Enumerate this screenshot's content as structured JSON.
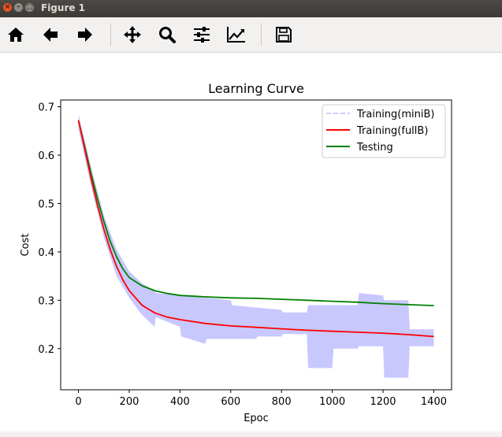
{
  "window": {
    "title": "Figure 1"
  },
  "toolbar": {
    "buttons": [
      {
        "name": "home-button",
        "icon": "home-icon"
      },
      {
        "name": "back-button",
        "icon": "arrow-left-icon"
      },
      {
        "name": "forward-button",
        "icon": "arrow-right-icon"
      },
      {
        "name": "pan-button",
        "icon": "move-icon"
      },
      {
        "name": "zoom-button",
        "icon": "search-icon"
      },
      {
        "name": "configure-subplots-button",
        "icon": "sliders-icon"
      },
      {
        "name": "edit-axis-button",
        "icon": "line-chart-icon"
      },
      {
        "name": "save-button",
        "icon": "floppy-disk-icon"
      }
    ]
  },
  "chart_data": {
    "type": "line",
    "title": "Learning Curve",
    "xlabel": "Epoc",
    "ylabel": "Cost",
    "xlim": [
      -70,
      1470
    ],
    "ylim": [
      0.115,
      0.714
    ],
    "xticks": [
      0,
      200,
      400,
      600,
      800,
      1000,
      1200,
      1400
    ],
    "xtick_labels": [
      "0",
      "200",
      "400",
      "600",
      "800",
      "1000",
      "1200",
      "1400"
    ],
    "yticks": [
      0.2,
      0.3,
      0.4,
      0.5,
      0.6,
      0.7
    ],
    "ytick_labels": [
      "0.2",
      "0.3",
      "0.4",
      "0.5",
      "0.6",
      "0.7"
    ],
    "grid": false,
    "legend_position": "top-right",
    "colors": {
      "minibatch": "#c8c8ff",
      "fullbatch": "#ff0000",
      "testing": "#008000"
    },
    "series": [
      {
        "name": "Training(miniB)",
        "style": "dashed",
        "band": [
          {
            "x": 0,
            "low": 0.655,
            "high": 0.685
          },
          {
            "x": 50,
            "low": 0.535,
            "high": 0.575
          },
          {
            "x": 100,
            "low": 0.43,
            "high": 0.475
          },
          {
            "x": 150,
            "low": 0.35,
            "high": 0.405
          },
          {
            "x": 200,
            "low": 0.305,
            "high": 0.36
          },
          {
            "x": 250,
            "low": 0.27,
            "high": 0.335
          },
          {
            "x": 300,
            "low": 0.245,
            "high": 0.32
          },
          {
            "x": 305,
            "low": 0.265,
            "high": 0.315
          },
          {
            "x": 400,
            "low": 0.245,
            "high": 0.31
          },
          {
            "x": 405,
            "low": 0.225,
            "high": 0.31
          },
          {
            "x": 500,
            "low": 0.21,
            "high": 0.305
          },
          {
            "x": 505,
            "low": 0.22,
            "high": 0.305
          },
          {
            "x": 600,
            "low": 0.22,
            "high": 0.3
          },
          {
            "x": 605,
            "low": 0.22,
            "high": 0.29
          },
          {
            "x": 700,
            "low": 0.22,
            "high": 0.285
          },
          {
            "x": 705,
            "low": 0.225,
            "high": 0.285
          },
          {
            "x": 800,
            "low": 0.225,
            "high": 0.28
          },
          {
            "x": 805,
            "low": 0.23,
            "high": 0.275
          },
          {
            "x": 900,
            "low": 0.23,
            "high": 0.275
          },
          {
            "x": 905,
            "low": 0.16,
            "high": 0.29
          },
          {
            "x": 1000,
            "low": 0.16,
            "high": 0.29
          },
          {
            "x": 1005,
            "low": 0.2,
            "high": 0.29
          },
          {
            "x": 1100,
            "low": 0.2,
            "high": 0.29
          },
          {
            "x": 1105,
            "low": 0.205,
            "high": 0.315
          },
          {
            "x": 1200,
            "low": 0.205,
            "high": 0.31
          },
          {
            "x": 1205,
            "low": 0.14,
            "high": 0.3
          },
          {
            "x": 1300,
            "low": 0.14,
            "high": 0.3
          },
          {
            "x": 1305,
            "low": 0.205,
            "high": 0.24
          },
          {
            "x": 1400,
            "low": 0.205,
            "high": 0.24
          }
        ]
      },
      {
        "name": "Training(fullB)",
        "style": "solid",
        "x": [
          0,
          25,
          50,
          75,
          100,
          125,
          150,
          175,
          200,
          250,
          300,
          350,
          400,
          500,
          600,
          700,
          800,
          900,
          1000,
          1100,
          1200,
          1300,
          1400
        ],
        "values": [
          0.672,
          0.612,
          0.552,
          0.496,
          0.447,
          0.405,
          0.37,
          0.342,
          0.32,
          0.29,
          0.274,
          0.265,
          0.26,
          0.252,
          0.247,
          0.244,
          0.241,
          0.238,
          0.236,
          0.234,
          0.232,
          0.229,
          0.225
        ]
      },
      {
        "name": "Testing",
        "style": "solid",
        "x": [
          0,
          25,
          50,
          75,
          100,
          125,
          150,
          175,
          200,
          250,
          300,
          350,
          400,
          500,
          600,
          700,
          800,
          900,
          1000,
          1100,
          1200,
          1300,
          1400
        ],
        "values": [
          0.672,
          0.617,
          0.562,
          0.51,
          0.463,
          0.422,
          0.39,
          0.365,
          0.347,
          0.33,
          0.32,
          0.314,
          0.31,
          0.307,
          0.305,
          0.304,
          0.302,
          0.3,
          0.298,
          0.296,
          0.293,
          0.291,
          0.289
        ]
      }
    ]
  }
}
